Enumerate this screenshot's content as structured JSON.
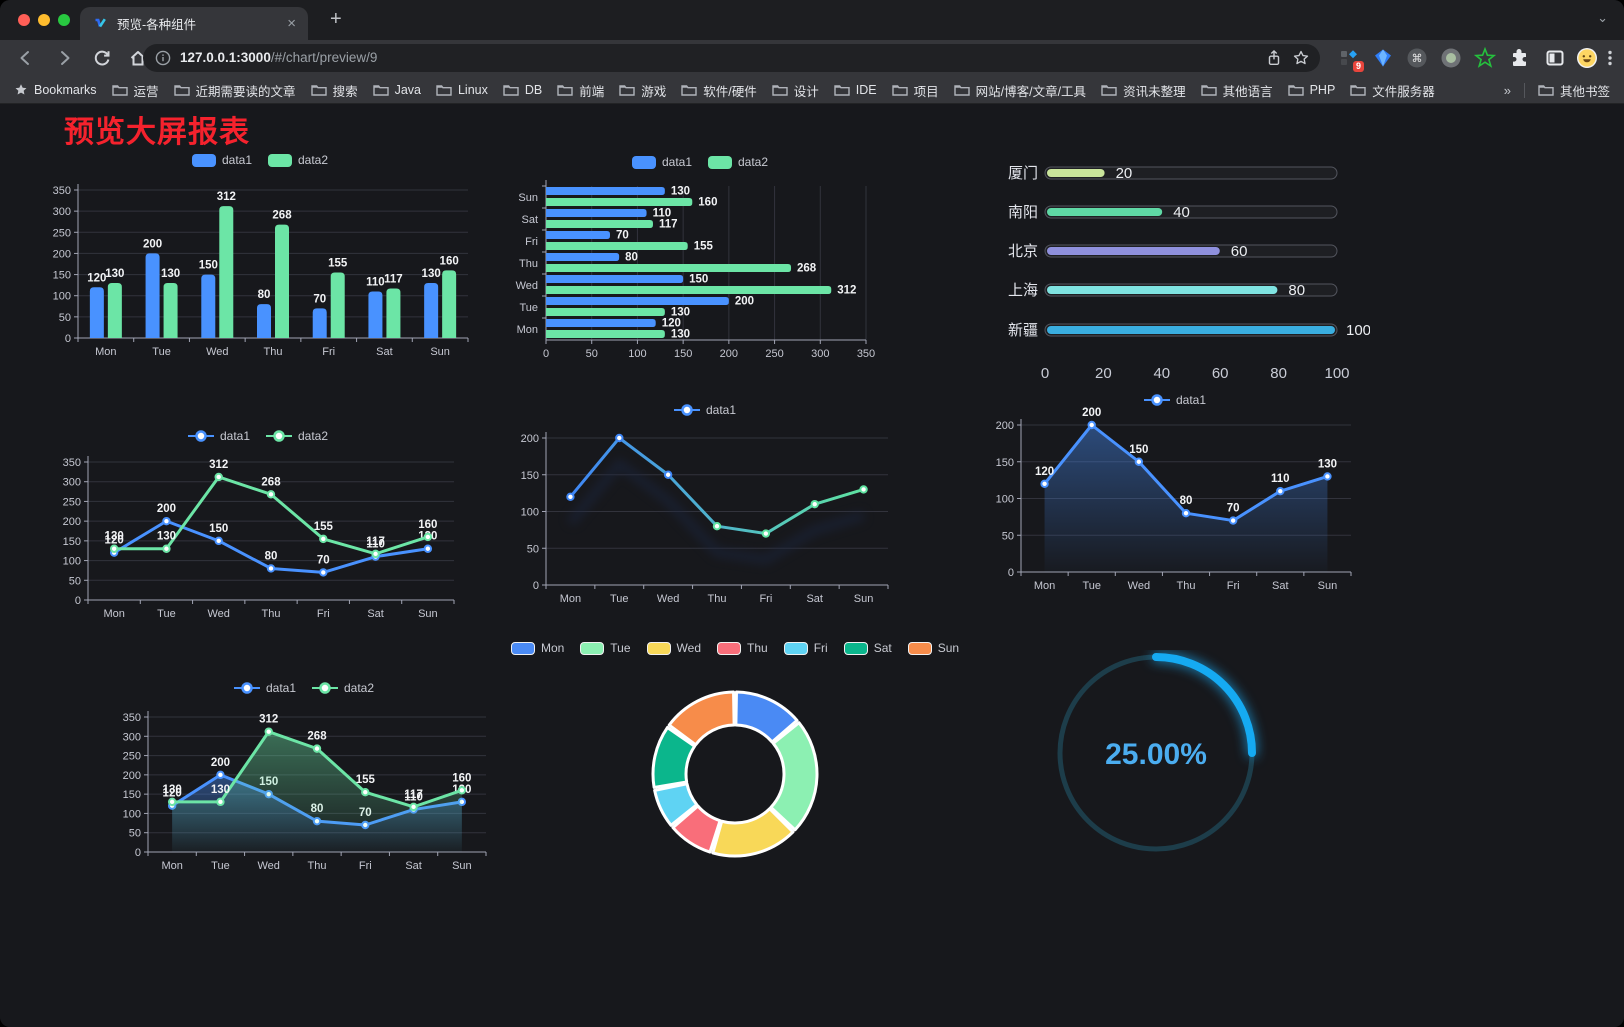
{
  "browser": {
    "tab_title": "预览-各种组件",
    "url_host": "127.0.0.1:3000",
    "url_path": "/#/chart/preview/9",
    "extension_badge": "9",
    "bookmarks_label": "Bookmarks",
    "bookmarks": [
      "运营",
      "近期需要读的文章",
      "搜索",
      "Java",
      "Linux",
      "DB",
      "前端",
      "游戏",
      "软件/硬件",
      "设计",
      "IDE",
      "项目",
      "网站/博客/文章/工具",
      "资讯未整理",
      "其他语言",
      "PHP",
      "文件服务器"
    ],
    "bookmarks_overflow": "»",
    "other_bookmarks": "其他书签"
  },
  "page": {
    "title": "预览大屏报表",
    "title_color": "#f5222d"
  },
  "chart_data": [
    {
      "type": "bar",
      "categories": [
        "Mon",
        "Tue",
        "Wed",
        "Thu",
        "Fri",
        "Sat",
        "Sun"
      ],
      "series": [
        {
          "name": "data1",
          "color": "#4992ff",
          "values": [
            120,
            200,
            150,
            80,
            70,
            110,
            130
          ]
        },
        {
          "name": "data2",
          "color": "#6ce5a6",
          "values": [
            130,
            130,
            312,
            268,
            155,
            117,
            160
          ]
        }
      ],
      "ylim": [
        0,
        350
      ],
      "yticks": [
        0,
        50,
        100,
        150,
        200,
        250,
        300,
        350
      ],
      "legend_position": "top",
      "grid": true,
      "show_labels": true
    },
    {
      "type": "hbar",
      "categories": [
        "Mon",
        "Tue",
        "Wed",
        "Thu",
        "Fri",
        "Sat",
        "Sun"
      ],
      "series": [
        {
          "name": "data1",
          "color": "#4992ff",
          "values": [
            120,
            200,
            150,
            80,
            70,
            110,
            130
          ]
        },
        {
          "name": "data2",
          "color": "#6ce5a6",
          "values": [
            130,
            130,
            312,
            268,
            155,
            117,
            160
          ]
        }
      ],
      "xlim": [
        0,
        350
      ],
      "xticks": [
        0,
        50,
        100,
        150,
        200,
        250,
        300,
        350
      ],
      "legend_position": "top",
      "grid": true,
      "show_labels": true
    },
    {
      "type": "progress",
      "items": [
        {
          "label": "厦门",
          "value": 20,
          "color": "#c9e49b"
        },
        {
          "label": "南阳",
          "value": 40,
          "color": "#5fd8a5"
        },
        {
          "label": "北京",
          "value": 60,
          "color": "#8f90dd"
        },
        {
          "label": "上海",
          "value": 80,
          "color": "#7fe3e1"
        },
        {
          "label": "新疆",
          "value": 100,
          "color": "#3aaee0"
        }
      ],
      "max": 100,
      "xticks": [
        0,
        20,
        40,
        60,
        80,
        100
      ]
    },
    {
      "type": "line",
      "categories": [
        "Mon",
        "Tue",
        "Wed",
        "Thu",
        "Fri",
        "Sat",
        "Sun"
      ],
      "series": [
        {
          "name": "data1",
          "color": "#4992ff",
          "values": [
            120,
            200,
            150,
            80,
            70,
            110,
            130
          ]
        },
        {
          "name": "data2",
          "color": "#6ce5a6",
          "values": [
            130,
            130,
            312,
            268,
            155,
            117,
            160
          ]
        }
      ],
      "ylim": [
        0,
        350
      ],
      "yticks": [
        0,
        50,
        100,
        150,
        200,
        250,
        300,
        350
      ],
      "legend_position": "top",
      "grid": true,
      "show_labels": true
    },
    {
      "type": "line",
      "categories": [
        "Mon",
        "Tue",
        "Wed",
        "Thu",
        "Fri",
        "Sat",
        "Sun"
      ],
      "series": [
        {
          "name": "data1",
          "color": "#4992ff",
          "gradient": [
            "#3f86f5",
            "#5fe3a1"
          ],
          "values": [
            120,
            200,
            150,
            80,
            70,
            110,
            130
          ]
        }
      ],
      "ylim": [
        0,
        200
      ],
      "yticks": [
        0,
        50,
        100,
        150,
        200
      ],
      "legend_position": "top",
      "grid": true,
      "show_labels": false,
      "shadow": true
    },
    {
      "type": "line",
      "categories": [
        "Mon",
        "Tue",
        "Wed",
        "Thu",
        "Fri",
        "Sat",
        "Sun"
      ],
      "series": [
        {
          "name": "data1",
          "color": "#4992ff",
          "area": true,
          "values": [
            120,
            200,
            150,
            80,
            70,
            110,
            130
          ]
        }
      ],
      "ylim": [
        0,
        200
      ],
      "yticks": [
        0,
        50,
        100,
        150,
        200
      ],
      "legend_position": "top",
      "grid": true,
      "show_labels": true
    },
    {
      "type": "line",
      "categories": [
        "Mon",
        "Tue",
        "Wed",
        "Thu",
        "Fri",
        "Sat",
        "Sun"
      ],
      "series": [
        {
          "name": "data1",
          "color": "#4992ff",
          "area": true,
          "values": [
            120,
            200,
            150,
            80,
            70,
            110,
            130
          ]
        },
        {
          "name": "data2",
          "color": "#6ce5a6",
          "area": true,
          "values": [
            130,
            130,
            312,
            268,
            155,
            117,
            160
          ]
        }
      ],
      "ylim": [
        0,
        350
      ],
      "yticks": [
        0,
        50,
        100,
        150,
        200,
        250,
        300,
        350
      ],
      "legend_position": "top",
      "grid": true,
      "show_labels": true
    },
    {
      "type": "pie",
      "categories": [
        "Mon",
        "Tue",
        "Wed",
        "Thu",
        "Fri",
        "Sat",
        "Sun"
      ],
      "values": [
        120,
        200,
        150,
        80,
        70,
        110,
        130
      ],
      "colors": [
        "#4a8af4",
        "#8cf0b2",
        "#f8d858",
        "#f96e7a",
        "#5fd3f3",
        "#0bb68c",
        "#f78c4a"
      ],
      "inner_radius_ratio": 0.6,
      "legend_position": "top"
    },
    {
      "type": "gauge",
      "value": 25,
      "label": "25.00%",
      "color": "#15aaf2",
      "track_color": "#1d3d4a",
      "text_color": "#4badf0"
    }
  ]
}
